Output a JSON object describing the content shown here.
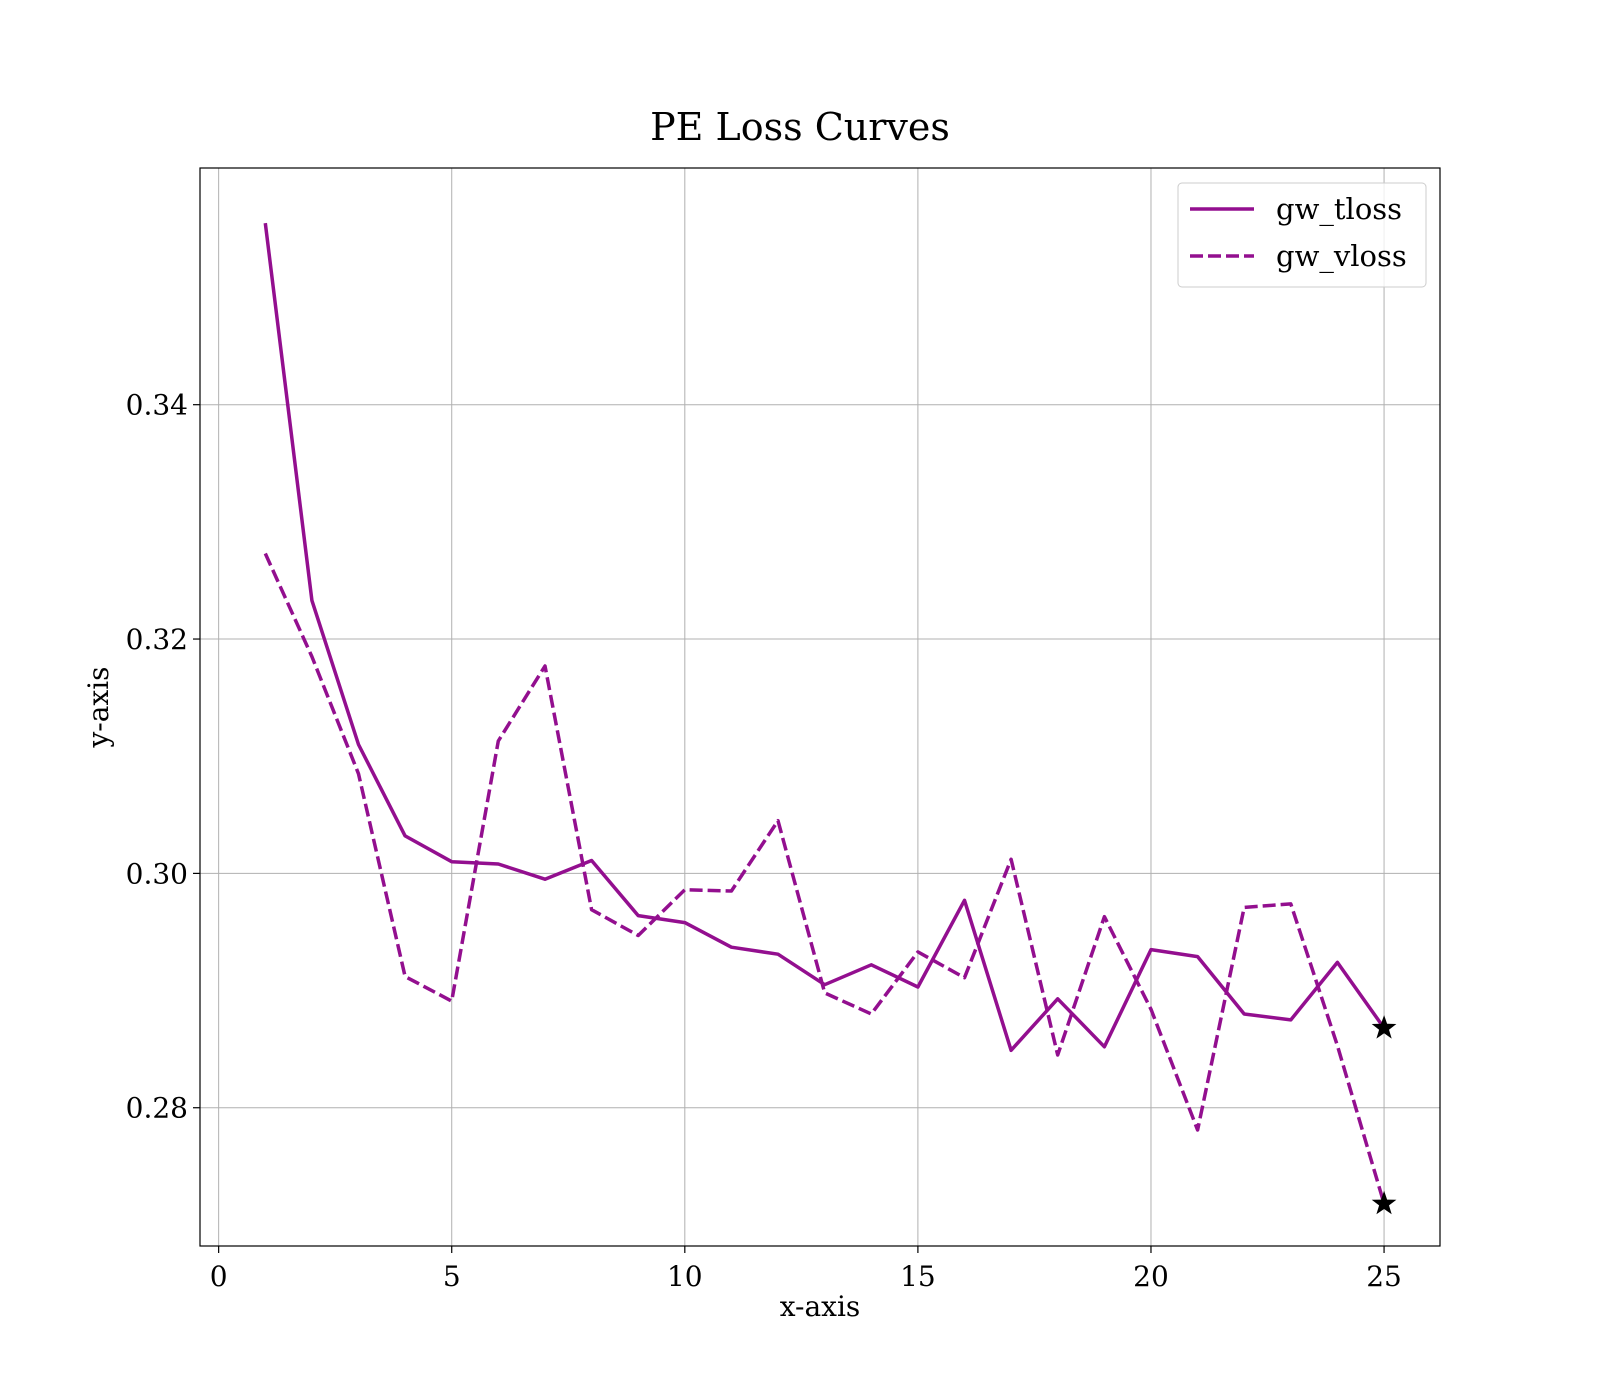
{
  "chart_data": {
    "type": "line",
    "title": "PE Loss Curves",
    "xlabel": "x-axis",
    "ylabel": "y-axis",
    "xlim": [
      -0.4,
      26.2
    ],
    "ylim": [
      0.2682,
      0.3602
    ],
    "xticks": [
      0,
      5,
      10,
      15,
      20,
      25
    ],
    "xtick_labels": [
      "0",
      "5",
      "10",
      "15",
      "20",
      "25"
    ],
    "yticks": [
      0.28,
      0.3,
      0.32,
      0.34
    ],
    "ytick_labels": [
      "0.28",
      "0.30",
      "0.32",
      "0.34"
    ],
    "grid": true,
    "legend_position": "top-right",
    "x": [
      1,
      2,
      3,
      4,
      5,
      6,
      7,
      8,
      9,
      10,
      11,
      12,
      13,
      14,
      15,
      16,
      17,
      18,
      19,
      20,
      21,
      22,
      23,
      24,
      25
    ],
    "series": [
      {
        "name": "gw_tloss",
        "style": "solid",
        "color": "#930f8f",
        "values": [
          0.3555,
          0.3233,
          0.311,
          0.3032,
          0.301,
          0.3008,
          0.2995,
          0.3011,
          0.2964,
          0.2958,
          0.2937,
          0.2931,
          0.2905,
          0.2922,
          0.2903,
          0.2977,
          0.2849,
          0.2893,
          0.2852,
          0.2935,
          0.2929,
          0.288,
          0.2875,
          0.2924,
          0.2868
        ]
      },
      {
        "name": "gw_vloss",
        "style": "dashed",
        "color": "#930f8f",
        "values": [
          0.3273,
          0.3185,
          0.3085,
          0.2912,
          0.2891,
          0.3113,
          0.3177,
          0.2969,
          0.2947,
          0.2986,
          0.2985,
          0.3045,
          0.2898,
          0.288,
          0.2933,
          0.2911,
          0.3012,
          0.2845,
          0.2963,
          0.2884,
          0.2781,
          0.2971,
          0.2974,
          0.2853,
          0.2718
        ]
      }
    ],
    "markers": [
      {
        "x": 25,
        "y": 0.2868,
        "shape": "star",
        "color": "#000000"
      },
      {
        "x": 25,
        "y": 0.2718,
        "shape": "star",
        "color": "#000000"
      }
    ]
  }
}
